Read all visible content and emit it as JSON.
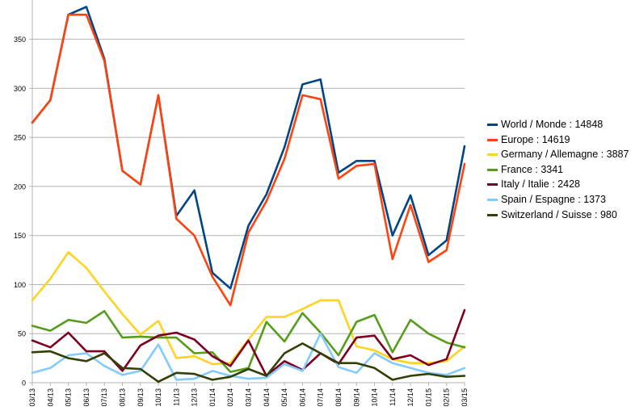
{
  "chart_data": {
    "type": "line",
    "title": "",
    "xlabel": "",
    "ylabel": "",
    "ylim": [
      0,
      390
    ],
    "yticks": [
      0,
      50,
      100,
      150,
      200,
      250,
      300,
      350
    ],
    "grid": "horizontal",
    "legend_position": "right",
    "categories": [
      "03/13",
      "04/13",
      "05/13",
      "06/13",
      "07/13",
      "08/13",
      "09/13",
      "10/13",
      "11/13",
      "12/13",
      "01/14",
      "02/14",
      "03/14",
      "04/14",
      "05/14",
      "06/14",
      "07/14",
      "08/14",
      "09/14",
      "10/14",
      "11/14",
      "12/14",
      "01/15",
      "02/15",
      "03/15"
    ],
    "series": [
      {
        "name": "World / Monde : 14848",
        "color": "#004586",
        "values": [
          265,
          288,
          375,
          383,
          330,
          216,
          202,
          293,
          170,
          196,
          112,
          96,
          160,
          192,
          240,
          304,
          309,
          214,
          226,
          226,
          150,
          191,
          130,
          145,
          241
        ]
      },
      {
        "name": "Europe : 14619",
        "color": "#ff420e",
        "values": [
          265,
          288,
          375,
          375,
          328,
          216,
          202,
          293,
          167,
          150,
          108,
          79,
          153,
          185,
          228,
          293,
          289,
          208,
          221,
          223,
          126,
          181,
          123,
          135,
          223
        ]
      },
      {
        "name": "Germany / Allemagne : 3887",
        "color": "#ffd320",
        "values": [
          84,
          106,
          133,
          117,
          93,
          70,
          49,
          63,
          25,
          27,
          19,
          20,
          44,
          67,
          67,
          75,
          84,
          84,
          37,
          33,
          24,
          20,
          20,
          22,
          37
        ]
      },
      {
        "name": "France : 3341",
        "color": "#579d1c",
        "values": [
          58,
          53,
          64,
          61,
          73,
          46,
          47,
          46,
          46,
          30,
          31,
          11,
          15,
          62,
          42,
          71,
          51,
          28,
          62,
          69,
          31,
          64,
          50,
          41,
          36
        ]
      },
      {
        "name": "Italy / Italie : 2428",
        "color": "#7e0021",
        "values": [
          43,
          36,
          51,
          32,
          32,
          12,
          38,
          48,
          51,
          44,
          27,
          17,
          43,
          7,
          22,
          13,
          30,
          19,
          46,
          48,
          24,
          28,
          18,
          24,
          74
        ]
      },
      {
        "name": "Spain / Espagne : 1373",
        "color": "#83caff",
        "values": [
          10,
          15,
          28,
          30,
          17,
          8,
          12,
          39,
          3,
          4,
          12,
          7,
          4,
          5,
          19,
          12,
          50,
          16,
          10,
          30,
          20,
          15,
          10,
          8,
          15
        ]
      },
      {
        "name": "Switzerland / Suisse : 980",
        "color": "#314004",
        "values": [
          31,
          32,
          25,
          22,
          30,
          15,
          14,
          1,
          10,
          9,
          3,
          6,
          14,
          7,
          30,
          40,
          30,
          20,
          20,
          15,
          3,
          7,
          9,
          6,
          7
        ]
      }
    ]
  }
}
